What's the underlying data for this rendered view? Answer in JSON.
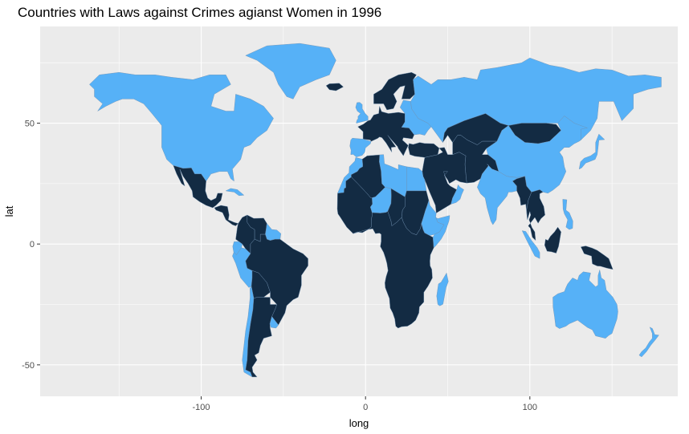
{
  "chart_data": {
    "type": "map",
    "title": "Countries with Laws against Crimes agianst Women in 1996",
    "xlabel": "long",
    "ylabel": "lat",
    "xlim": [
      -198,
      190
    ],
    "ylim": [
      -63,
      90
    ],
    "x_ticks": [
      -100,
      0,
      100
    ],
    "x_tick_labels": [
      "-100",
      "0",
      "100"
    ],
    "y_ticks": [
      -50,
      0,
      50
    ],
    "y_tick_labels": [
      "-50",
      "0",
      "50"
    ],
    "grid": true,
    "legend": "none",
    "colors": {
      "panel": "#EBEBEB",
      "grid": "#FFFFFF",
      "has_law": "#56B1F7",
      "no_law": "#132B43",
      "border": "#6f8fb0"
    },
    "regions": [
      {
        "name": "North America",
        "has_law": true
      },
      {
        "name": "Greenland",
        "has_law": true
      },
      {
        "name": "Mexico",
        "has_law": false
      },
      {
        "name": "Central America",
        "has_law": false
      },
      {
        "name": "Cuba",
        "has_law": true
      },
      {
        "name": "Colombia",
        "has_law": false
      },
      {
        "name": "Venezuela",
        "has_law": false
      },
      {
        "name": "Guyana",
        "has_law": true
      },
      {
        "name": "Ecuador",
        "has_law": true
      },
      {
        "name": "Peru",
        "has_law": true
      },
      {
        "name": "Brazil",
        "has_law": false
      },
      {
        "name": "Bolivia",
        "has_law": false
      },
      {
        "name": "Chile",
        "has_law": true
      },
      {
        "name": "Argentina",
        "has_law": false
      },
      {
        "name": "Uruguay",
        "has_law": true
      },
      {
        "name": "Iceland",
        "has_law": false
      },
      {
        "name": "Scandinavia",
        "has_law": false
      },
      {
        "name": "United Kingdom",
        "has_law": true
      },
      {
        "name": "Western Europe",
        "has_law": false
      },
      {
        "name": "Iberia",
        "has_law": true
      },
      {
        "name": "Eastern Europe",
        "has_law": true
      },
      {
        "name": "Russia",
        "has_law": true
      },
      {
        "name": "Kazakhstan",
        "has_law": false
      },
      {
        "name": "Mongolia",
        "has_law": false
      },
      {
        "name": "China",
        "has_law": true
      },
      {
        "name": "Central Asia",
        "has_law": false
      },
      {
        "name": "Middle East",
        "has_law": false
      },
      {
        "name": "Turkey",
        "has_law": false
      },
      {
        "name": "Oman",
        "has_law": true
      },
      {
        "name": "India",
        "has_law": true
      },
      {
        "name": "Myanmar",
        "has_law": false
      },
      {
        "name": "Indochina",
        "has_law": false
      },
      {
        "name": "Sumatra",
        "has_law": true
      },
      {
        "name": "Borneo",
        "has_law": false
      },
      {
        "name": "Philippines",
        "has_law": true
      },
      {
        "name": "Japan",
        "has_law": true
      },
      {
        "name": "New Guinea",
        "has_law": false
      },
      {
        "name": "Australia",
        "has_law": true
      },
      {
        "name": "New Zealand",
        "has_law": true
      },
      {
        "name": "Morocco",
        "has_law": true
      },
      {
        "name": "Algeria",
        "has_law": false
      },
      {
        "name": "Libya",
        "has_law": true
      },
      {
        "name": "Egypt",
        "has_law": true
      },
      {
        "name": "West Africa",
        "has_law": false
      },
      {
        "name": "Niger",
        "has_law": true
      },
      {
        "name": "Chad",
        "has_law": false
      },
      {
        "name": "Sudan",
        "has_law": false
      },
      {
        "name": "Ethiopia",
        "has_law": true
      },
      {
        "name": "Somalia",
        "has_law": true
      },
      {
        "name": "Central & Southern Africa",
        "has_law": false
      },
      {
        "name": "Madagascar",
        "has_law": true
      }
    ]
  }
}
